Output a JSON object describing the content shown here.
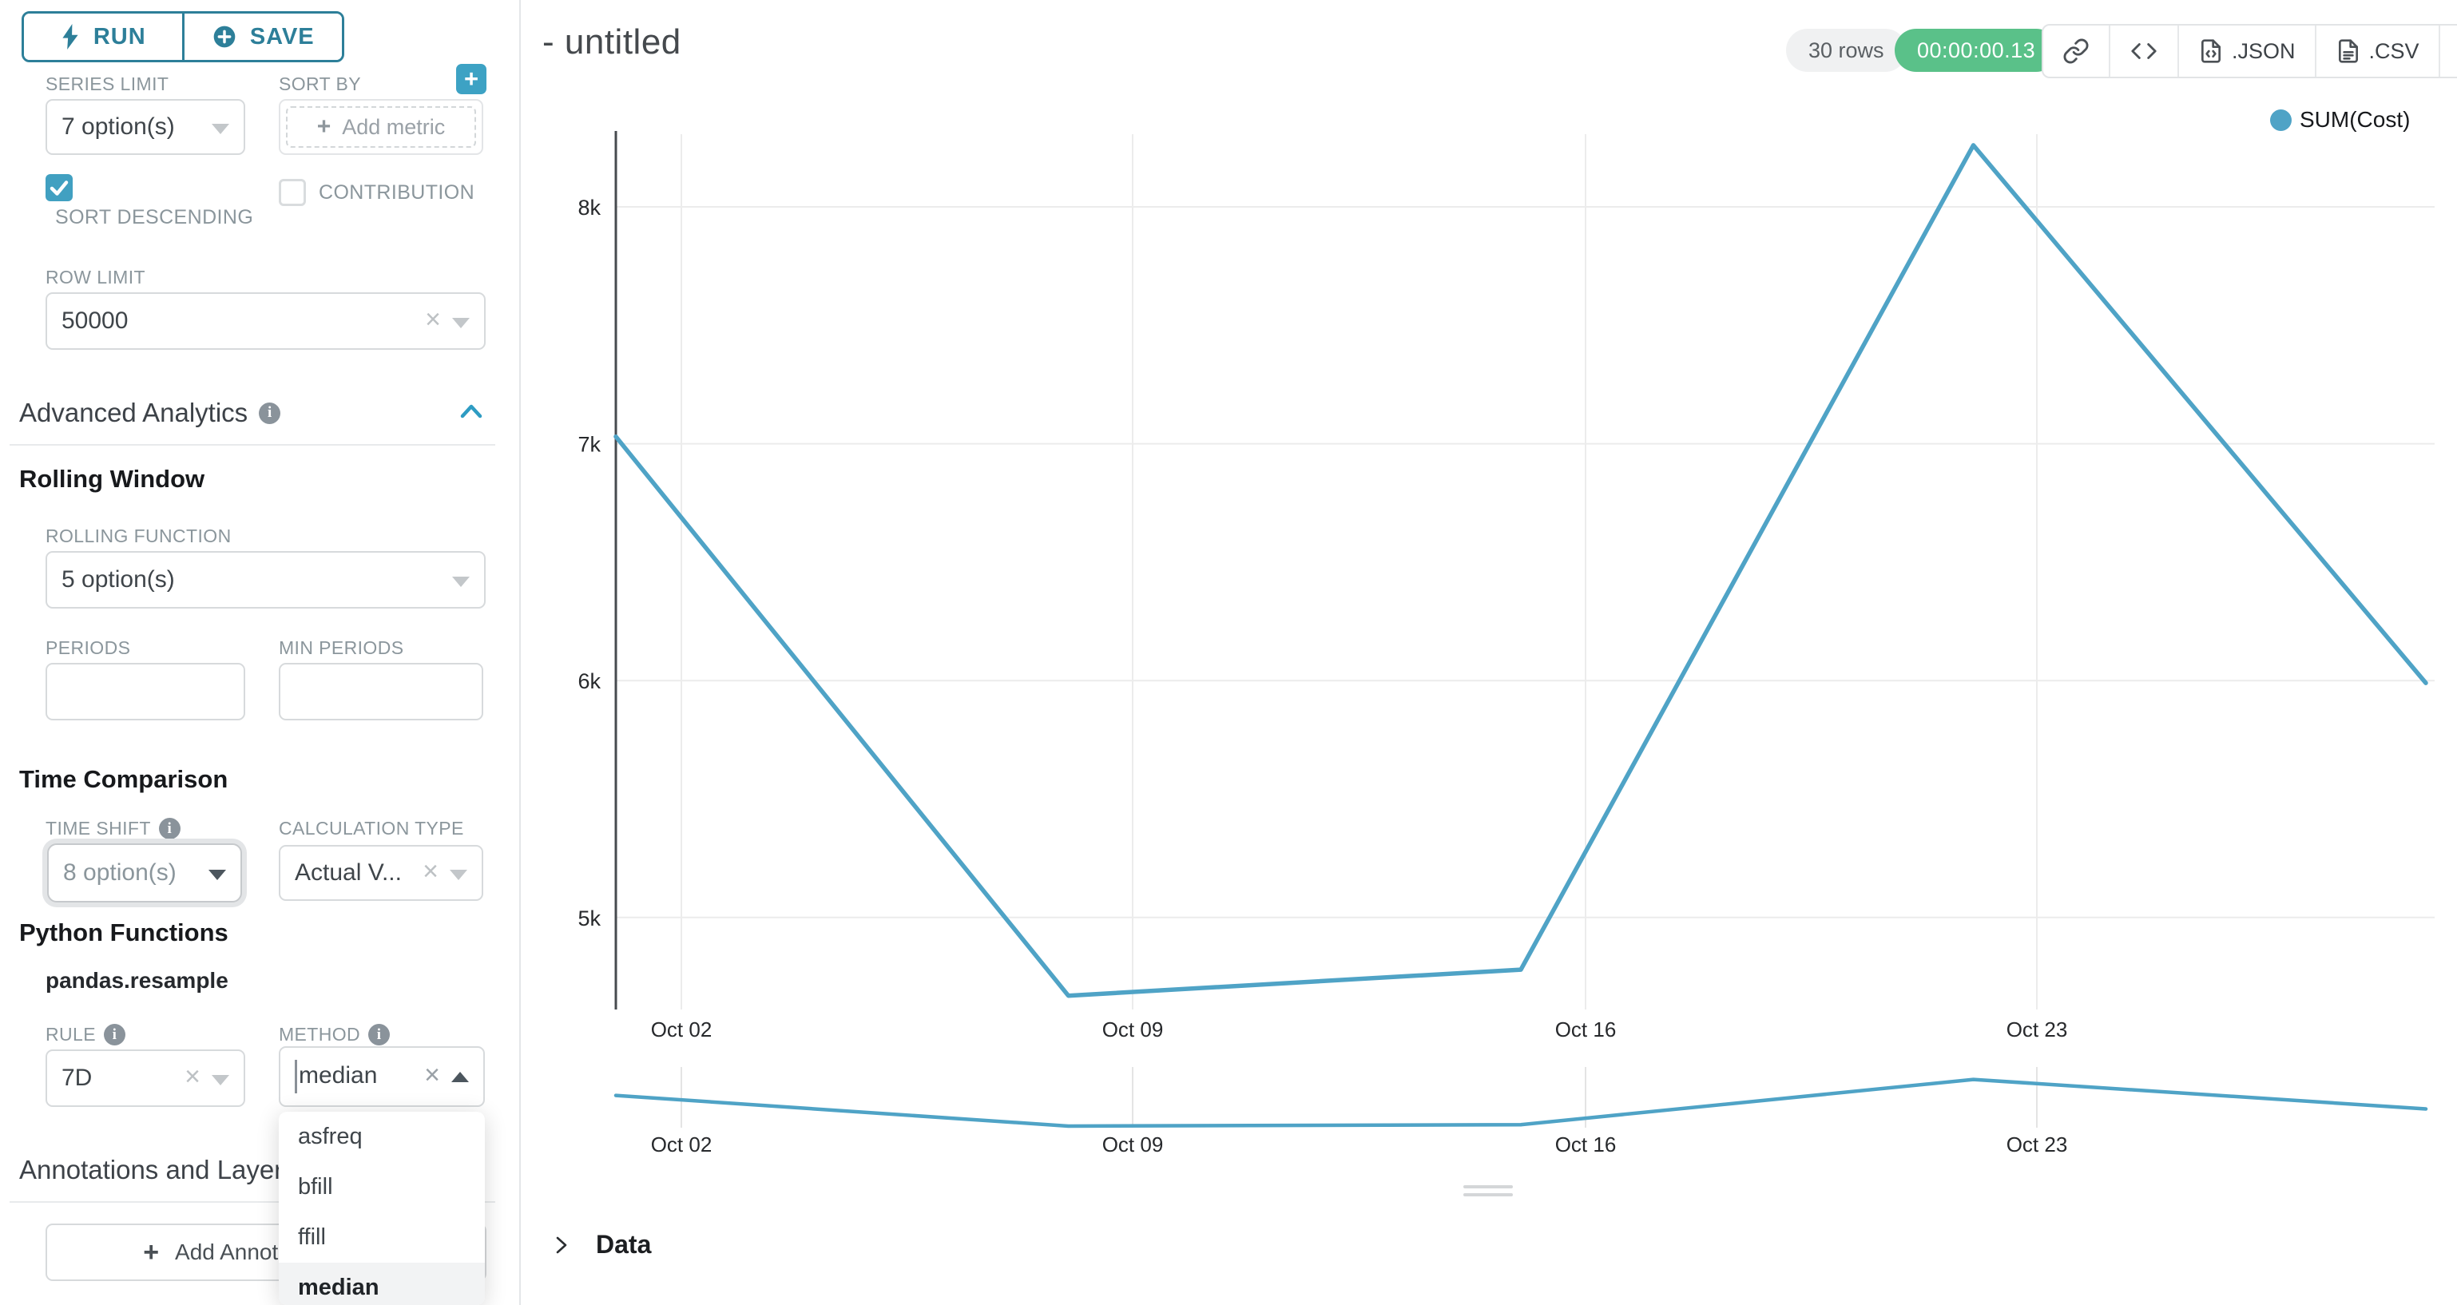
{
  "sidebar": {
    "run_button": "RUN",
    "save_button": "SAVE",
    "series_limit": {
      "label": "SERIES LIMIT",
      "value": "7 option(s)"
    },
    "sort_by": {
      "label": "SORT BY",
      "placeholder": "Add metric"
    },
    "sort_descending": {
      "label": "SORT DESCENDING",
      "checked": true
    },
    "contribution": {
      "label": "CONTRIBUTION",
      "checked": false
    },
    "row_limit": {
      "label": "ROW LIMIT",
      "value": "50000"
    },
    "advanced_analytics_title": "Advanced Analytics",
    "rolling_window": {
      "title": "Rolling Window",
      "rolling_function": {
        "label": "ROLLING FUNCTION",
        "value": "5 option(s)"
      },
      "periods_label": "PERIODS",
      "min_periods_label": "MIN PERIODS"
    },
    "time_comparison": {
      "title": "Time Comparison",
      "time_shift": {
        "label": "TIME SHIFT",
        "value": "8 option(s)"
      },
      "calculation_type": {
        "label": "CALCULATION TYPE",
        "value": "Actual V..."
      }
    },
    "python_functions": {
      "title": "Python Functions",
      "module": "pandas.resample",
      "rule": {
        "label": "RULE",
        "value": "7D"
      },
      "method": {
        "label": "METHOD",
        "value": "median"
      }
    },
    "method_dropdown": {
      "options": [
        "asfreq",
        "bfill",
        "ffill",
        "median"
      ],
      "selected": "median"
    },
    "annotations": {
      "title": "Annotations and Layers",
      "add_button": "Add Annotation Layer"
    }
  },
  "header": {
    "title": "- untitled",
    "rows_badge": "30 rows",
    "timer_badge": "00:00:00.13",
    "export_json_label": ".JSON",
    "export_csv_label": ".CSV"
  },
  "chart_data": {
    "type": "line",
    "title": "",
    "x": [
      "Oct 01",
      "Oct 08",
      "Oct 15",
      "Oct 22",
      "Oct 29"
    ],
    "series": [
      {
        "name": "SUM(Cost)",
        "values": [
          7030,
          4670,
          4780,
          8260,
          5990
        ]
      }
    ],
    "x_tick_labels": [
      "Oct 02",
      "Oct 09",
      "Oct 16",
      "Oct 23"
    ],
    "y_ticks": [
      8000,
      7000,
      6000,
      5000
    ],
    "y_tick_labels": [
      "8k",
      "7k",
      "6k",
      "5k"
    ],
    "ylim": [
      4600,
      8300
    ],
    "grid": true,
    "legend": {
      "position": "top-right",
      "entries": [
        "SUM(Cost)"
      ]
    },
    "line_color": "#4fa3c6",
    "brush": {
      "x_tick_labels": [
        "Oct 02",
        "Oct 09",
        "Oct 16",
        "Oct 23"
      ],
      "values": [
        7030,
        4670,
        4780,
        8260,
        5990
      ]
    }
  },
  "data_panel_label": "Data",
  "colors": {
    "accent_teal": "#2d7f99",
    "control_teal": "#41a0c1",
    "line": "#4fa3c6",
    "success_green": "#5ac189"
  }
}
